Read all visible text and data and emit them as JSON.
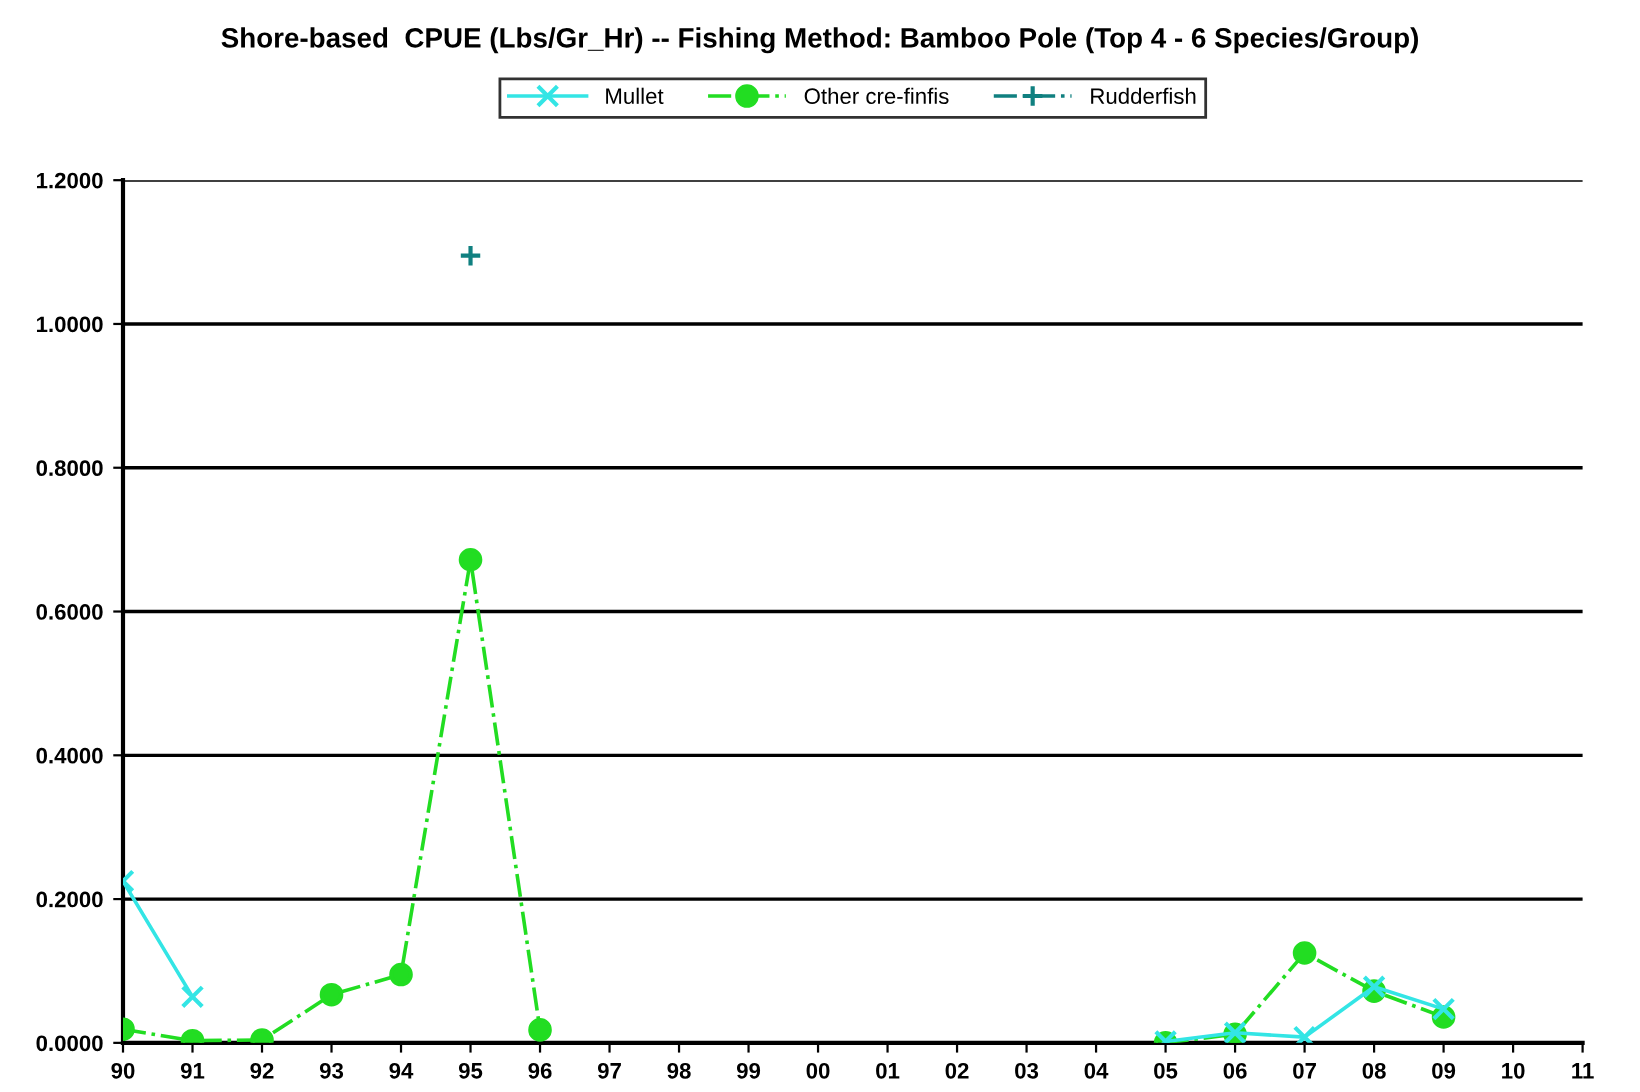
{
  "chart_data": {
    "type": "line",
    "title": "Shore-based  CPUE (Lbs/Gr_Hr) -- Fishing Method: Bamboo Pole (Top 4 - 6 Species/Group)",
    "categories": [
      "90",
      "91",
      "92",
      "93",
      "94",
      "95",
      "96",
      "97",
      "98",
      "99",
      "00",
      "01",
      "02",
      "03",
      "04",
      "05",
      "06",
      "07",
      "08",
      "09",
      "10",
      "11"
    ],
    "series": [
      {
        "name": "Mullet",
        "color": "#33e5e5",
        "marker": "cross",
        "line_style": "solid",
        "values": [
          0.225,
          0.064,
          null,
          null,
          null,
          null,
          null,
          null,
          null,
          null,
          null,
          null,
          null,
          null,
          null,
          0.002,
          0.014,
          0.008,
          0.078,
          0.047,
          null,
          null
        ]
      },
      {
        "name": "Other cre-finfis",
        "color": "#22dd22",
        "marker": "circle",
        "line_style": "dashed",
        "values": [
          0.019,
          0.003,
          0.004,
          0.067,
          0.095,
          0.672,
          0.018,
          null,
          null,
          null,
          null,
          null,
          null,
          null,
          null,
          0.0,
          0.012,
          0.125,
          0.072,
          0.036,
          null,
          null
        ]
      },
      {
        "name": "Rudderfish",
        "color": "#108080",
        "marker": "cross",
        "line_style": "dashed",
        "values": [
          null,
          null,
          null,
          null,
          null,
          1.095,
          null,
          null,
          null,
          null,
          null,
          null,
          null,
          null,
          null,
          null,
          null,
          null,
          null,
          null,
          null,
          null
        ]
      }
    ],
    "ylim": [
      0,
      1.2
    ],
    "yticks": [
      {
        "value": 0,
        "label": "0.0000"
      },
      {
        "value": 0.2,
        "label": "0.2000"
      },
      {
        "value": 0.4,
        "label": "0.4000"
      },
      {
        "value": 0.6,
        "label": "0.6000"
      },
      {
        "value": 0.8,
        "label": "0.8000"
      },
      {
        "value": 1.0,
        "label": "1.0000"
      },
      {
        "value": 1.2,
        "label": "1.2000"
      }
    ],
    "grid": "y",
    "legend": "top"
  }
}
